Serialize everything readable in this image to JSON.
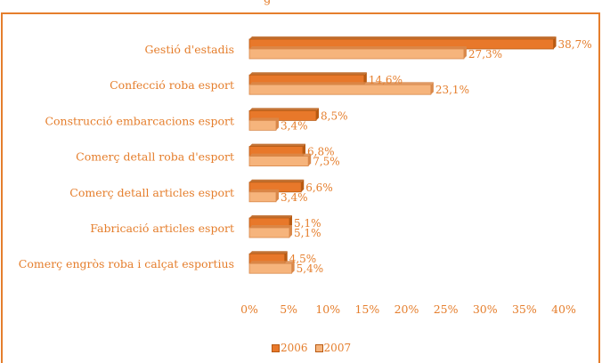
{
  "chart_data": {
    "type": "bar",
    "orientation": "horizontal",
    "title": "",
    "title_fragment": "g",
    "xlabel": "",
    "ylabel": "",
    "xlim": [
      0,
      40
    ],
    "x_ticks": [
      "0%",
      "5%",
      "10%",
      "15%",
      "20%",
      "25%",
      "30%",
      "35%",
      "40%"
    ],
    "categories": [
      "Gestió d'estadis",
      "Confecció roba esport",
      "Construcció embarcacions esport",
      "Comerç detall roba d'esport",
      "Comerç detall articles esport",
      "Fabricació articles esport",
      "Comerç engròs roba i calçat esportius"
    ],
    "series": [
      {
        "name": "2006",
        "color": "#e8782a",
        "values": [
          38.7,
          14.6,
          8.5,
          6.8,
          6.6,
          5.1,
          4.5
        ],
        "labels": [
          "38,7%",
          "14,6%",
          "8,5%",
          "6,8%",
          "6,6%",
          "5,1%",
          "4,5%"
        ]
      },
      {
        "name": "2007",
        "color": "#f6b47c",
        "values": [
          27.3,
          23.1,
          3.4,
          7.5,
          3.4,
          5.1,
          5.4
        ],
        "labels": [
          "27,3%",
          "23,1%",
          "3,4%",
          "7,5%",
          "3,4%",
          "5,1%",
          "5,4%"
        ]
      }
    ],
    "grid": false,
    "legend_position": "bottom",
    "text_color": "#e57e2c"
  }
}
